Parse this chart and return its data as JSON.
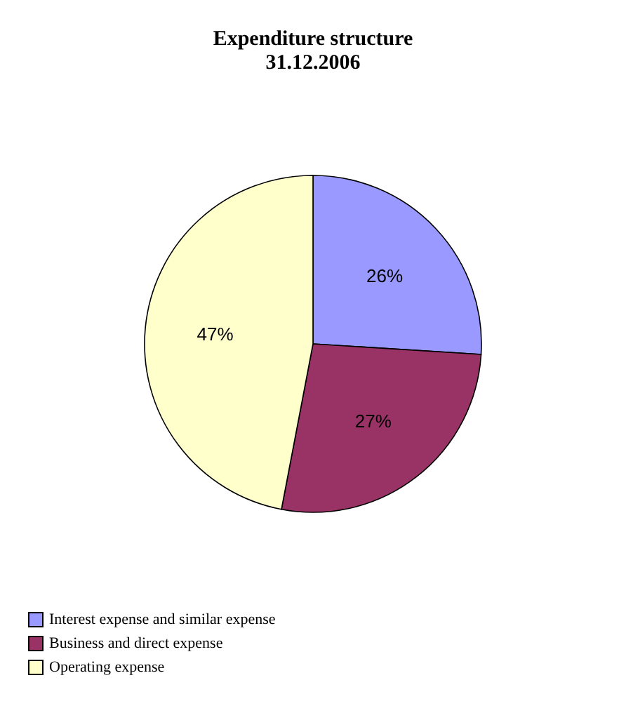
{
  "chart_data": {
    "type": "pie",
    "title": [
      "Expenditure structure",
      "31.12.2006"
    ],
    "categories": [
      "Interest expense and similar expense",
      "Business and direct expense",
      "Operating expense"
    ],
    "values": [
      26,
      27,
      47
    ],
    "colors": [
      "#9999ff",
      "#993366",
      "#ffffcc"
    ],
    "value_labels": [
      "26%",
      "27%",
      "47%"
    ],
    "legend": "bottom"
  }
}
